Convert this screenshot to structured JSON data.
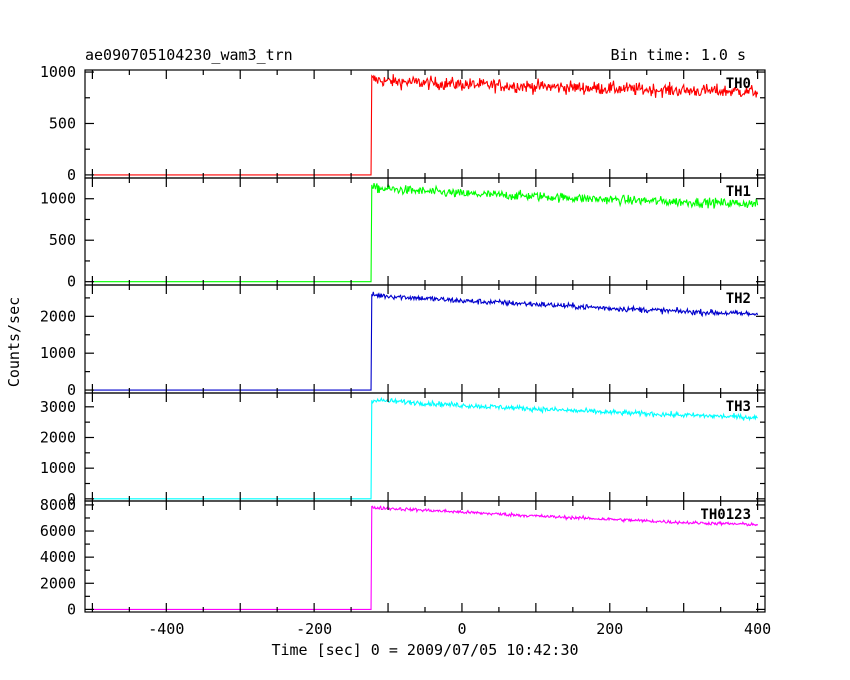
{
  "chart_data": {
    "type": "line",
    "title": "ae090705104230_wam3_trn",
    "subtitle": "Bin time: 1.0 s",
    "xlabel": "Time [sec] 0 = 2009/07/05 10:42:30",
    "ylabel": "Counts/sec",
    "xlim": [
      -510,
      410
    ],
    "x_ticks": [
      -400,
      -200,
      0,
      200,
      400
    ],
    "onset_time": -122,
    "end_time": 400,
    "start_time": -500,
    "panels": [
      {
        "name": "TH0",
        "color": "#ff0000",
        "ylim": [
          -30,
          1020
        ],
        "y_ticks": [
          0,
          500,
          1000
        ],
        "pre_level": 0,
        "envelope": [
          [
            -122,
            930
          ],
          [
            -100,
            910
          ],
          [
            0,
            880
          ],
          [
            100,
            860
          ],
          [
            200,
            840
          ],
          [
            300,
            820
          ],
          [
            400,
            810
          ]
        ],
        "noise": 45
      },
      {
        "name": "TH1",
        "color": "#00ff00",
        "ylim": [
          -40,
          1250
        ],
        "y_ticks": [
          0,
          500,
          1000
        ],
        "pre_level": 0,
        "envelope": [
          [
            -122,
            1130
          ],
          [
            0,
            1060
          ],
          [
            100,
            1030
          ],
          [
            200,
            990
          ],
          [
            300,
            960
          ],
          [
            400,
            940
          ]
        ],
        "noise": 40
      },
      {
        "name": "TH2",
        "color": "#0000cc",
        "ylim": [
          -80,
          2850
        ],
        "y_ticks": [
          0,
          1000,
          2000
        ],
        "pre_level": 0,
        "envelope": [
          [
            -122,
            2580
          ],
          [
            0,
            2420
          ],
          [
            100,
            2330
          ],
          [
            200,
            2220
          ],
          [
            300,
            2130
          ],
          [
            400,
            2060
          ]
        ],
        "noise": 55
      },
      {
        "name": "TH3",
        "color": "#00ffff",
        "ylim": [
          -70,
          3450
        ],
        "y_ticks": [
          0,
          1000,
          2000,
          3000
        ],
        "pre_level": 0,
        "envelope": [
          [
            -122,
            3220
          ],
          [
            0,
            3050
          ],
          [
            100,
            2930
          ],
          [
            200,
            2820
          ],
          [
            300,
            2730
          ],
          [
            400,
            2650
          ]
        ],
        "noise": 60
      },
      {
        "name": "TH0123",
        "color": "#ff00ff",
        "ylim": [
          -200,
          8300
        ],
        "y_ticks": [
          0,
          2000,
          4000,
          6000,
          8000
        ],
        "pre_level": 0,
        "envelope": [
          [
            -122,
            7800
          ],
          [
            0,
            7450
          ],
          [
            100,
            7150
          ],
          [
            200,
            6900
          ],
          [
            300,
            6650
          ],
          [
            400,
            6500
          ]
        ],
        "noise": 90
      }
    ]
  }
}
